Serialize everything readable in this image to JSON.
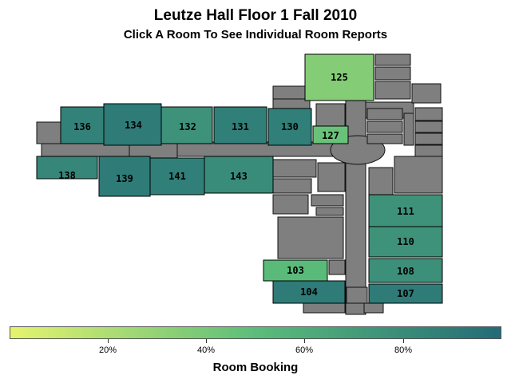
{
  "header": {
    "title": "Leutze Hall Floor 1 Fall 2010",
    "subtitle": "Click A Room To See Individual Room Reports"
  },
  "colors": {
    "scale_low": "#e5f36e",
    "scale_mid": "#5bbd7a",
    "scale_high": "#236b78",
    "non_room": "#7f7f7f",
    "outline": "#000000"
  },
  "colorbar": {
    "title": "Room Booking",
    "ticks": [
      "20%",
      "40%",
      "60%",
      "80%"
    ],
    "tick_values": [
      0.2,
      0.4,
      0.6,
      0.8
    ],
    "range": [
      0.0,
      1.0
    ]
  },
  "rooms": [
    {
      "id": "125",
      "label": "125",
      "booking": 0.35
    },
    {
      "id": "136",
      "label": "136",
      "booking": 0.86
    },
    {
      "id": "134",
      "label": "134",
      "booking": 0.9
    },
    {
      "id": "132",
      "label": "132",
      "booking": 0.76
    },
    {
      "id": "131",
      "label": "131",
      "booking": 0.88
    },
    {
      "id": "130",
      "label": "130",
      "booking": 0.88
    },
    {
      "id": "127",
      "label": "127",
      "booking": 0.45
    },
    {
      "id": "138",
      "label": "138",
      "booking": 0.83
    },
    {
      "id": "139",
      "label": "139",
      "booking": 0.9
    },
    {
      "id": "141",
      "label": "141",
      "booking": 0.88
    },
    {
      "id": "143",
      "label": "143",
      "booking": 0.8
    },
    {
      "id": "111",
      "label": "111",
      "booking": 0.76
    },
    {
      "id": "110",
      "label": "110",
      "booking": 0.76
    },
    {
      "id": "103",
      "label": "103",
      "booking": 0.52
    },
    {
      "id": "108",
      "label": "108",
      "booking": 0.78
    },
    {
      "id": "104",
      "label": "104",
      "booking": 0.9
    },
    {
      "id": "107",
      "label": "107",
      "booking": 0.9
    }
  ]
}
